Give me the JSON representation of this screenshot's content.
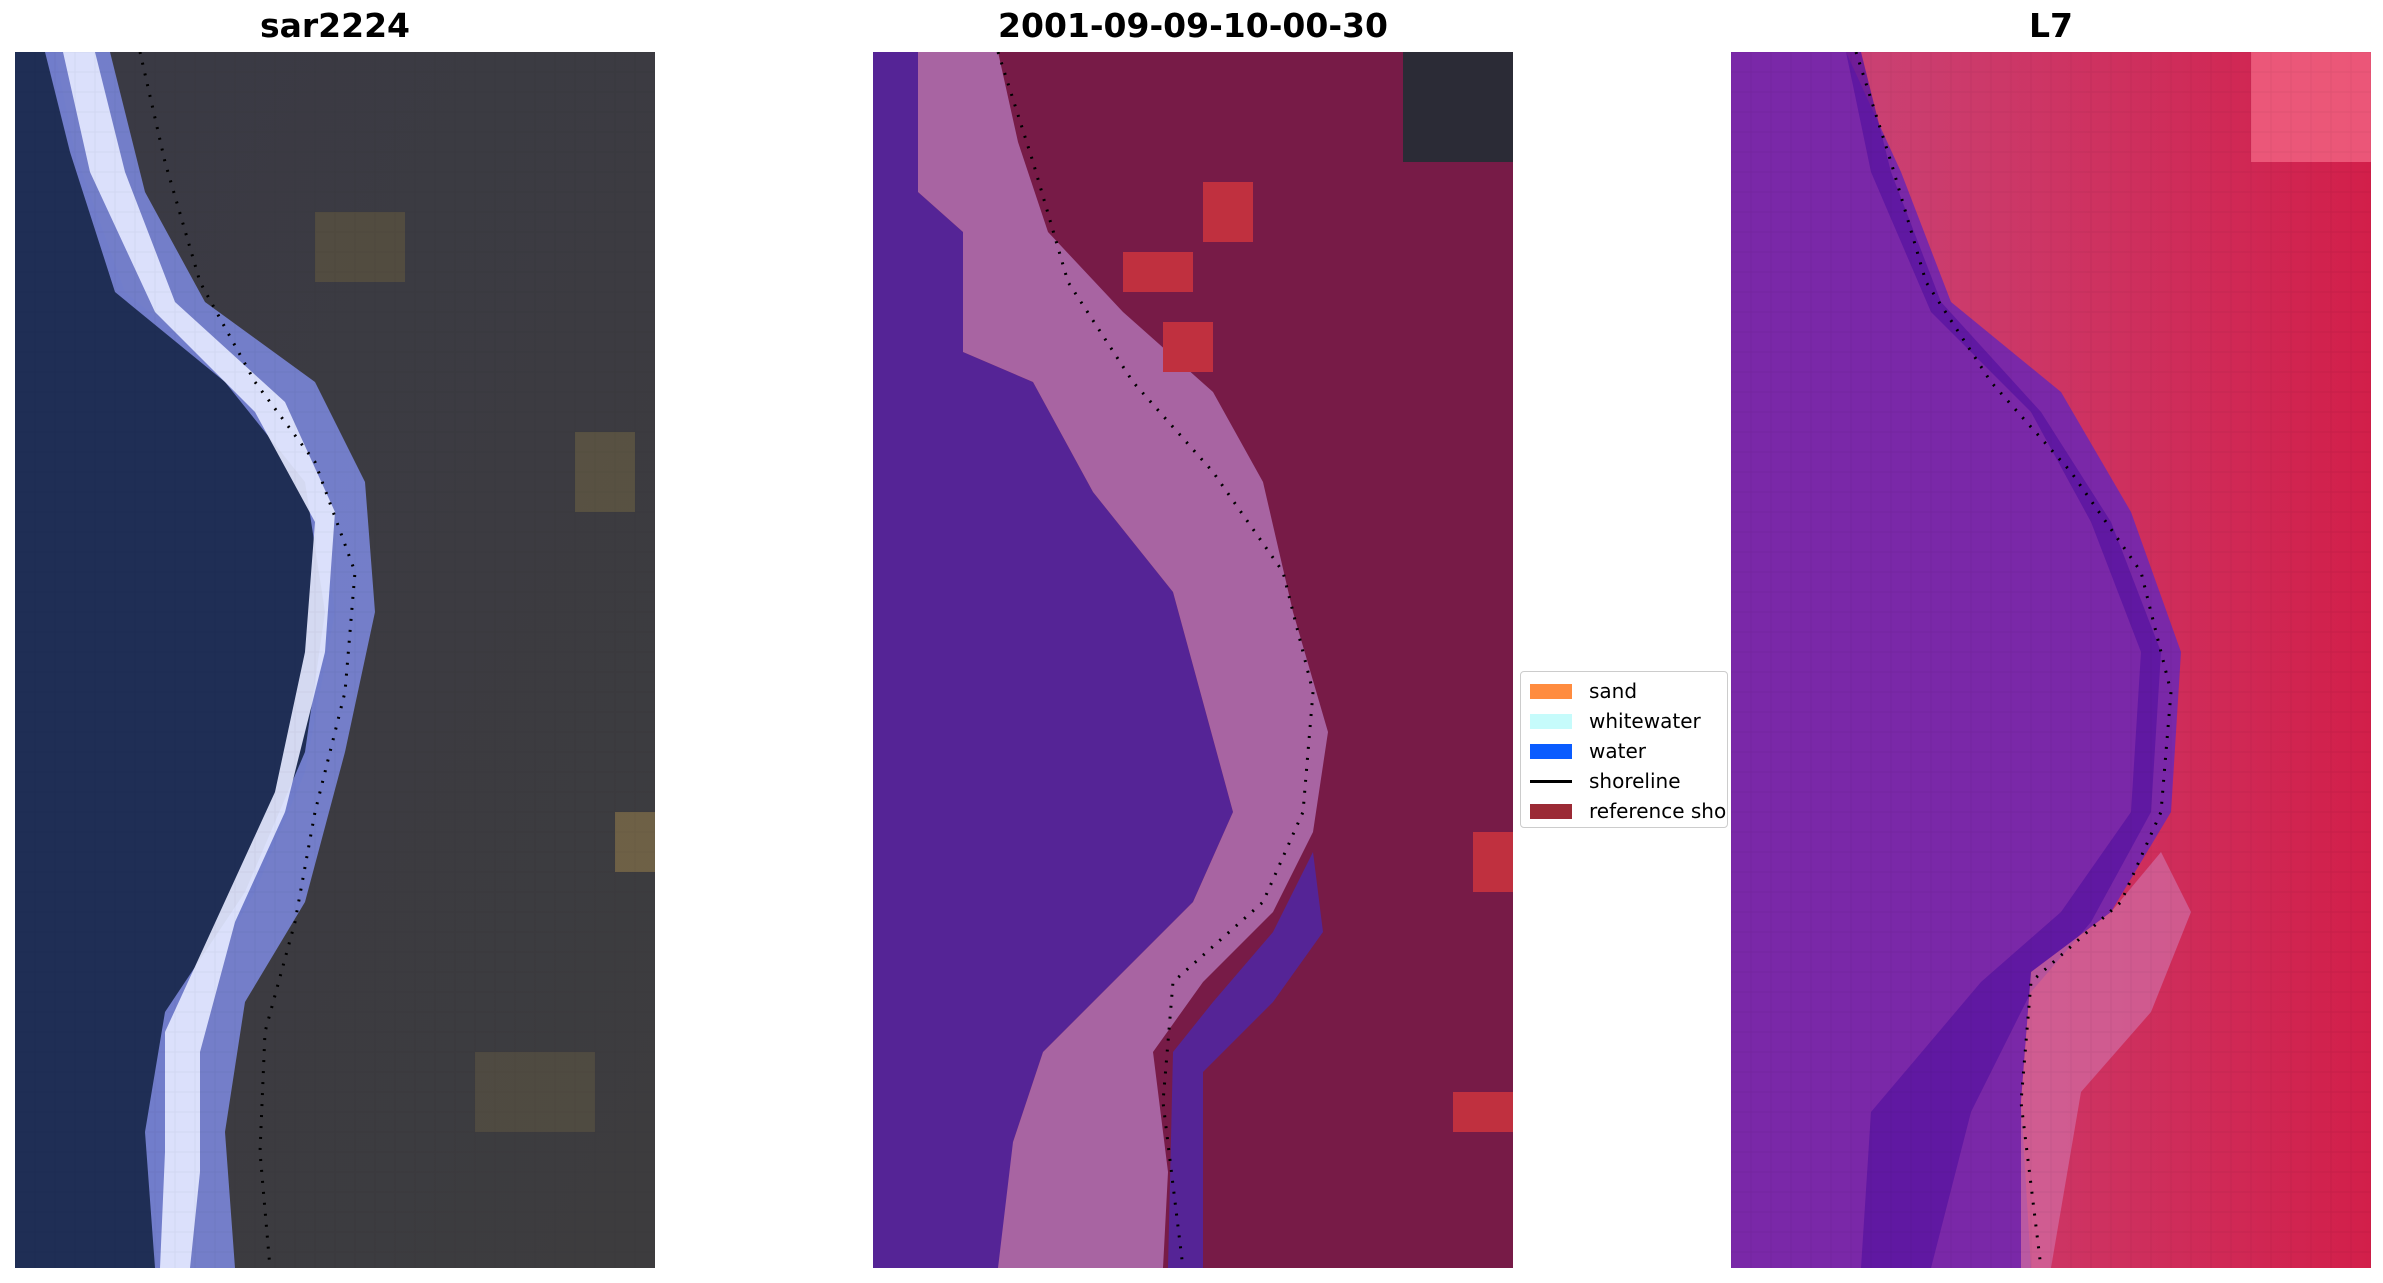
{
  "panels": [
    {
      "title": "sar2224",
      "image": "rgb-true-color-satellite-image"
    },
    {
      "title": "2001-09-09-10-00-30",
      "image": "classified-image-overlay"
    },
    {
      "title": "L7",
      "image": "false-color-satellite-image"
    }
  ],
  "legend": {
    "items": [
      {
        "label": "sand",
        "color": "#ff8c3f",
        "kind": "patch"
      },
      {
        "label": "whitewater",
        "color": "#c6fbfb",
        "kind": "patch"
      },
      {
        "label": "water",
        "color": "#0a5cff",
        "kind": "patch"
      },
      {
        "label": "shoreline",
        "color": "#000000",
        "kind": "line"
      },
      {
        "label": "reference shoreline",
        "color": "#9b2a35",
        "kind": "patch"
      }
    ]
  },
  "colors": {
    "rgb_water": "#1f2e55",
    "rgb_surf": "#e4e8ff",
    "rgb_land": "#3b3b3f",
    "class_water": "#552496",
    "class_whitewater": "#a864a2",
    "class_land": "#771b47",
    "class_sand": "#c0303f",
    "fc_water": "#7a28a8",
    "fc_land": "#c83a6a"
  }
}
